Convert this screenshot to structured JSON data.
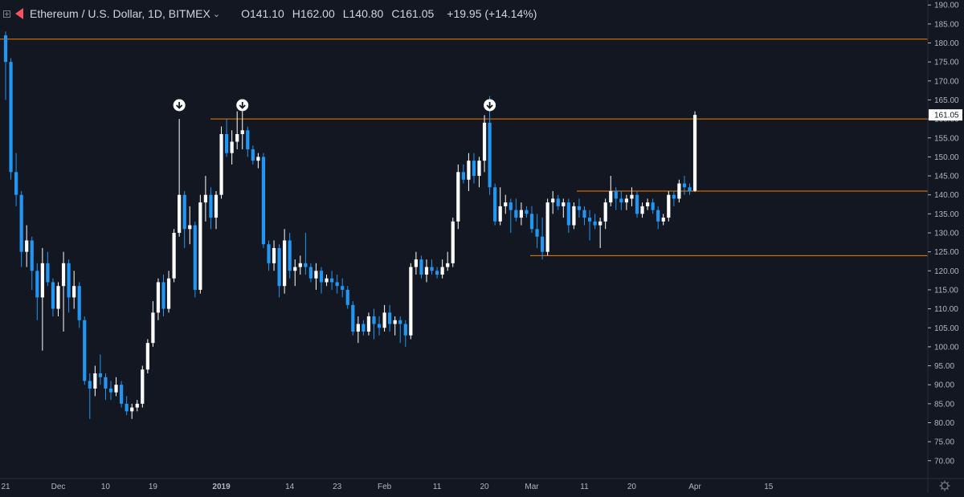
{
  "header": {
    "title": "Ethereum / U.S. Dollar, 1D, BITMEX",
    "ohlc": {
      "open": "O141.10",
      "high": "H162.00",
      "low": "L140.80",
      "close": "C161.05"
    },
    "change": "+19.95 (+14.14%)"
  },
  "colors": {
    "background": "#131722",
    "up_candle": "#ffffff",
    "down_candle": "#2196f3",
    "level_line": "#f57c00",
    "axis_text": "#b2b5be",
    "price_label_bg": "#ffffff"
  },
  "chart_data": {
    "type": "candlestick",
    "symbol": "Ethereum / U.S. Dollar",
    "interval": "1D",
    "exchange": "BITMEX",
    "last_price_label": "161.05",
    "ylim": [
      68,
      192
    ],
    "y_ticks": [
      "70.00",
      "75.00",
      "80.00",
      "85.00",
      "90.00",
      "95.00",
      "100.00",
      "105.00",
      "110.00",
      "115.00",
      "120.00",
      "125.00",
      "130.00",
      "135.00",
      "140.00",
      "145.00",
      "150.00",
      "155.00",
      "160.00",
      "165.00",
      "170.00",
      "175.00",
      "180.00",
      "185.00",
      "190.00"
    ],
    "x_ticks": [
      {
        "label": "21",
        "date": "2018-11-21"
      },
      {
        "label": "Dec",
        "date": "2018-12-01"
      },
      {
        "label": "10",
        "date": "2018-12-10"
      },
      {
        "label": "19",
        "date": "2018-12-19"
      },
      {
        "label": "2019",
        "date": "2019-01-01",
        "bold": true
      },
      {
        "label": "14",
        "date": "2019-01-14"
      },
      {
        "label": "23",
        "date": "2019-01-23"
      },
      {
        "label": "Feb",
        "date": "2019-02-01"
      },
      {
        "label": "11",
        "date": "2019-02-11"
      },
      {
        "label": "20",
        "date": "2019-02-20"
      },
      {
        "label": "Mar",
        "date": "2019-03-01"
      },
      {
        "label": "11",
        "date": "2019-03-11"
      },
      {
        "label": "20",
        "date": "2019-03-20"
      },
      {
        "label": "Apr",
        "date": "2019-04-01"
      },
      {
        "label": "15",
        "date": "2019-04-15"
      }
    ],
    "candles": [
      {
        "d": "2018-11-21",
        "o": 182,
        "h": 183,
        "l": 165,
        "c": 175
      },
      {
        "d": "2018-11-22",
        "o": 175,
        "h": 176,
        "l": 144,
        "c": 146
      },
      {
        "d": "2018-11-23",
        "o": 146,
        "h": 151,
        "l": 137,
        "c": 140
      },
      {
        "d": "2018-11-24",
        "o": 140,
        "h": 141,
        "l": 121,
        "c": 125
      },
      {
        "d": "2018-11-25",
        "o": 125,
        "h": 132,
        "l": 121,
        "c": 128
      },
      {
        "d": "2018-11-26",
        "o": 128,
        "h": 129,
        "l": 115,
        "c": 120
      },
      {
        "d": "2018-11-27",
        "o": 120,
        "h": 122,
        "l": 107,
        "c": 113
      },
      {
        "d": "2018-11-28",
        "o": 113,
        "h": 126,
        "l": 99,
        "c": 122
      },
      {
        "d": "2018-11-29",
        "o": 122,
        "h": 125,
        "l": 116,
        "c": 117
      },
      {
        "d": "2018-11-30",
        "o": 117,
        "h": 118,
        "l": 108,
        "c": 110
      },
      {
        "d": "2018-12-01",
        "o": 110,
        "h": 117,
        "l": 108,
        "c": 116
      },
      {
        "d": "2018-12-02",
        "o": 116,
        "h": 125,
        "l": 104,
        "c": 122
      },
      {
        "d": "2018-12-03",
        "o": 122,
        "h": 123,
        "l": 109,
        "c": 113
      },
      {
        "d": "2018-12-04",
        "o": 113,
        "h": 120,
        "l": 110,
        "c": 116
      },
      {
        "d": "2018-12-05",
        "o": 116,
        "h": 117,
        "l": 105,
        "c": 107
      },
      {
        "d": "2018-12-06",
        "o": 107,
        "h": 108,
        "l": 90,
        "c": 91
      },
      {
        "d": "2018-12-07",
        "o": 91,
        "h": 93,
        "l": 81,
        "c": 89
      },
      {
        "d": "2018-12-08",
        "o": 89,
        "h": 95,
        "l": 87,
        "c": 93
      },
      {
        "d": "2018-12-09",
        "o": 93,
        "h": 98,
        "l": 90,
        "c": 92
      },
      {
        "d": "2018-12-10",
        "o": 92,
        "h": 93,
        "l": 86,
        "c": 89
      },
      {
        "d": "2018-12-11",
        "o": 89,
        "h": 91,
        "l": 86,
        "c": 88
      },
      {
        "d": "2018-12-12",
        "o": 88,
        "h": 92,
        "l": 87,
        "c": 90
      },
      {
        "d": "2018-12-13",
        "o": 90,
        "h": 91,
        "l": 84,
        "c": 85
      },
      {
        "d": "2018-12-14",
        "o": 85,
        "h": 87,
        "l": 82,
        "c": 83
      },
      {
        "d": "2018-12-15",
        "o": 83,
        "h": 85,
        "l": 81,
        "c": 84
      },
      {
        "d": "2018-12-16",
        "o": 84,
        "h": 86,
        "l": 83,
        "c": 85
      },
      {
        "d": "2018-12-17",
        "o": 85,
        "h": 95,
        "l": 84,
        "c": 94
      },
      {
        "d": "2018-12-18",
        "o": 94,
        "h": 102,
        "l": 93,
        "c": 101
      },
      {
        "d": "2018-12-19",
        "o": 101,
        "h": 112,
        "l": 100,
        "c": 109
      },
      {
        "d": "2018-12-20",
        "o": 109,
        "h": 118,
        "l": 107,
        "c": 117
      },
      {
        "d": "2018-12-21",
        "o": 117,
        "h": 119,
        "l": 108,
        "c": 110
      },
      {
        "d": "2018-12-22",
        "o": 110,
        "h": 120,
        "l": 109,
        "c": 118
      },
      {
        "d": "2018-12-23",
        "o": 118,
        "h": 131,
        "l": 117,
        "c": 130
      },
      {
        "d": "2018-12-24",
        "o": 130,
        "h": 160,
        "l": 129,
        "c": 140
      },
      {
        "d": "2018-12-25",
        "o": 140,
        "h": 141,
        "l": 126,
        "c": 131
      },
      {
        "d": "2018-12-26",
        "o": 131,
        "h": 137,
        "l": 127,
        "c": 132
      },
      {
        "d": "2018-12-27",
        "o": 132,
        "h": 133,
        "l": 113,
        "c": 115
      },
      {
        "d": "2018-12-28",
        "o": 115,
        "h": 140,
        "l": 114,
        "c": 138
      },
      {
        "d": "2018-12-29",
        "o": 138,
        "h": 145,
        "l": 133,
        "c": 140
      },
      {
        "d": "2018-12-30",
        "o": 140,
        "h": 142,
        "l": 131,
        "c": 134
      },
      {
        "d": "2018-12-31",
        "o": 134,
        "h": 141,
        "l": 131,
        "c": 140
      },
      {
        "d": "2019-01-01",
        "o": 140,
        "h": 158,
        "l": 139,
        "c": 156
      },
      {
        "d": "2019-01-02",
        "o": 156,
        "h": 160,
        "l": 150,
        "c": 151
      },
      {
        "d": "2019-01-03",
        "o": 151,
        "h": 157,
        "l": 148,
        "c": 154
      },
      {
        "d": "2019-01-04",
        "o": 154,
        "h": 162,
        "l": 152,
        "c": 156
      },
      {
        "d": "2019-01-05",
        "o": 156,
        "h": 162,
        "l": 152,
        "c": 157
      },
      {
        "d": "2019-01-06",
        "o": 157,
        "h": 158,
        "l": 150,
        "c": 152
      },
      {
        "d": "2019-01-07",
        "o": 152,
        "h": 153,
        "l": 148,
        "c": 149
      },
      {
        "d": "2019-01-08",
        "o": 149,
        "h": 151,
        "l": 147,
        "c": 150
      },
      {
        "d": "2019-01-09",
        "o": 150,
        "h": 151,
        "l": 126,
        "c": 127
      },
      {
        "d": "2019-01-10",
        "o": 127,
        "h": 128,
        "l": 120,
        "c": 122
      },
      {
        "d": "2019-01-11",
        "o": 122,
        "h": 128,
        "l": 120,
        "c": 126
      },
      {
        "d": "2019-01-12",
        "o": 126,
        "h": 127,
        "l": 113,
        "c": 116
      },
      {
        "d": "2019-01-13",
        "o": 116,
        "h": 131,
        "l": 114,
        "c": 128
      },
      {
        "d": "2019-01-14",
        "o": 128,
        "h": 130,
        "l": 118,
        "c": 120
      },
      {
        "d": "2019-01-15",
        "o": 120,
        "h": 123,
        "l": 116,
        "c": 121
      },
      {
        "d": "2019-01-16",
        "o": 121,
        "h": 124,
        "l": 119,
        "c": 122
      },
      {
        "d": "2019-01-17",
        "o": 122,
        "h": 130,
        "l": 119,
        "c": 121
      },
      {
        "d": "2019-01-18",
        "o": 121,
        "h": 122,
        "l": 117,
        "c": 118
      },
      {
        "d": "2019-01-19",
        "o": 118,
        "h": 122,
        "l": 115,
        "c": 120
      },
      {
        "d": "2019-01-20",
        "o": 120,
        "h": 121,
        "l": 114,
        "c": 117
      },
      {
        "d": "2019-01-21",
        "o": 117,
        "h": 119,
        "l": 116,
        "c": 118
      },
      {
        "d": "2019-01-22",
        "o": 118,
        "h": 120,
        "l": 115,
        "c": 117
      },
      {
        "d": "2019-01-23",
        "o": 117,
        "h": 119,
        "l": 114,
        "c": 116
      },
      {
        "d": "2019-01-24",
        "o": 116,
        "h": 118,
        "l": 113,
        "c": 115
      },
      {
        "d": "2019-01-25",
        "o": 115,
        "h": 116,
        "l": 110,
        "c": 111
      },
      {
        "d": "2019-01-26",
        "o": 111,
        "h": 112,
        "l": 103,
        "c": 104
      },
      {
        "d": "2019-01-27",
        "o": 104,
        "h": 108,
        "l": 101,
        "c": 106
      },
      {
        "d": "2019-01-28",
        "o": 106,
        "h": 107,
        "l": 103,
        "c": 104
      },
      {
        "d": "2019-01-29",
        "o": 104,
        "h": 109,
        "l": 103,
        "c": 108
      },
      {
        "d": "2019-01-30",
        "o": 108,
        "h": 110,
        "l": 102,
        "c": 106
      },
      {
        "d": "2019-01-31",
        "o": 106,
        "h": 108,
        "l": 103,
        "c": 105
      },
      {
        "d": "2019-02-01",
        "o": 105,
        "h": 111,
        "l": 104,
        "c": 109
      },
      {
        "d": "2019-02-02",
        "o": 109,
        "h": 111,
        "l": 104,
        "c": 106
      },
      {
        "d": "2019-02-03",
        "o": 106,
        "h": 108,
        "l": 103,
        "c": 107
      },
      {
        "d": "2019-02-04",
        "o": 107,
        "h": 108,
        "l": 101,
        "c": 106
      },
      {
        "d": "2019-02-05",
        "o": 106,
        "h": 107,
        "l": 100,
        "c": 103
      },
      {
        "d": "2019-02-06",
        "o": 103,
        "h": 122,
        "l": 102,
        "c": 121
      },
      {
        "d": "2019-02-07",
        "o": 121,
        "h": 125,
        "l": 119,
        "c": 123
      },
      {
        "d": "2019-02-08",
        "o": 123,
        "h": 124,
        "l": 118,
        "c": 119
      },
      {
        "d": "2019-02-09",
        "o": 119,
        "h": 123,
        "l": 117,
        "c": 121
      },
      {
        "d": "2019-02-10",
        "o": 121,
        "h": 123,
        "l": 119,
        "c": 120
      },
      {
        "d": "2019-02-11",
        "o": 120,
        "h": 121,
        "l": 118,
        "c": 119
      },
      {
        "d": "2019-02-12",
        "o": 119,
        "h": 123,
        "l": 118,
        "c": 121
      },
      {
        "d": "2019-02-13",
        "o": 121,
        "h": 125,
        "l": 120,
        "c": 122
      },
      {
        "d": "2019-02-14",
        "o": 122,
        "h": 134,
        "l": 121,
        "c": 133
      },
      {
        "d": "2019-02-15",
        "o": 133,
        "h": 148,
        "l": 131,
        "c": 146
      },
      {
        "d": "2019-02-16",
        "o": 146,
        "h": 148,
        "l": 143,
        "c": 144
      },
      {
        "d": "2019-02-17",
        "o": 144,
        "h": 151,
        "l": 141,
        "c": 149
      },
      {
        "d": "2019-02-18",
        "o": 149,
        "h": 151,
        "l": 143,
        "c": 145
      },
      {
        "d": "2019-02-19",
        "o": 145,
        "h": 150,
        "l": 142,
        "c": 149
      },
      {
        "d": "2019-02-20",
        "o": 149,
        "h": 161,
        "l": 146,
        "c": 159
      },
      {
        "d": "2019-02-21",
        "o": 159,
        "h": 166,
        "l": 140,
        "c": 142
      },
      {
        "d": "2019-02-22",
        "o": 142,
        "h": 143,
        "l": 132,
        "c": 133
      },
      {
        "d": "2019-02-23",
        "o": 133,
        "h": 142,
        "l": 132,
        "c": 137
      },
      {
        "d": "2019-02-24",
        "o": 137,
        "h": 140,
        "l": 135,
        "c": 138
      },
      {
        "d": "2019-02-25",
        "o": 138,
        "h": 139,
        "l": 130,
        "c": 136
      },
      {
        "d": "2019-02-26",
        "o": 136,
        "h": 139,
        "l": 133,
        "c": 134
      },
      {
        "d": "2019-02-27",
        "o": 134,
        "h": 138,
        "l": 132,
        "c": 136
      },
      {
        "d": "2019-02-28",
        "o": 136,
        "h": 137,
        "l": 134,
        "c": 135
      },
      {
        "d": "2019-03-01",
        "o": 135,
        "h": 137,
        "l": 130,
        "c": 131
      },
      {
        "d": "2019-03-02",
        "o": 131,
        "h": 135,
        "l": 126,
        "c": 129
      },
      {
        "d": "2019-03-03",
        "o": 129,
        "h": 134,
        "l": 123,
        "c": 125
      },
      {
        "d": "2019-03-04",
        "o": 125,
        "h": 139,
        "l": 124,
        "c": 138
      },
      {
        "d": "2019-03-05",
        "o": 138,
        "h": 141,
        "l": 135,
        "c": 139
      },
      {
        "d": "2019-03-06",
        "o": 139,
        "h": 140,
        "l": 136,
        "c": 137
      },
      {
        "d": "2019-03-07",
        "o": 137,
        "h": 139,
        "l": 134,
        "c": 138
      },
      {
        "d": "2019-03-08",
        "o": 138,
        "h": 139,
        "l": 130,
        "c": 132
      },
      {
        "d": "2019-03-09",
        "o": 132,
        "h": 138,
        "l": 131,
        "c": 137
      },
      {
        "d": "2019-03-10",
        "o": 137,
        "h": 139,
        "l": 134,
        "c": 136
      },
      {
        "d": "2019-03-11",
        "o": 136,
        "h": 137,
        "l": 132,
        "c": 134
      },
      {
        "d": "2019-03-12",
        "o": 134,
        "h": 136,
        "l": 128,
        "c": 133
      },
      {
        "d": "2019-03-13",
        "o": 133,
        "h": 135,
        "l": 131,
        "c": 132
      },
      {
        "d": "2019-03-14",
        "o": 132,
        "h": 134,
        "l": 126,
        "c": 133
      },
      {
        "d": "2019-03-15",
        "o": 133,
        "h": 139,
        "l": 131,
        "c": 138
      },
      {
        "d": "2019-03-16",
        "o": 138,
        "h": 145,
        "l": 137,
        "c": 141
      },
      {
        "d": "2019-03-17",
        "o": 141,
        "h": 142,
        "l": 136,
        "c": 139
      },
      {
        "d": "2019-03-18",
        "o": 139,
        "h": 141,
        "l": 136,
        "c": 138
      },
      {
        "d": "2019-03-19",
        "o": 138,
        "h": 140,
        "l": 136,
        "c": 139
      },
      {
        "d": "2019-03-20",
        "o": 139,
        "h": 142,
        "l": 137,
        "c": 140
      },
      {
        "d": "2019-03-21",
        "o": 140,
        "h": 141,
        "l": 134,
        "c": 135
      },
      {
        "d": "2019-03-22",
        "o": 135,
        "h": 138,
        "l": 134,
        "c": 137
      },
      {
        "d": "2019-03-23",
        "o": 137,
        "h": 139,
        "l": 136,
        "c": 138
      },
      {
        "d": "2019-03-24",
        "o": 138,
        "h": 139,
        "l": 135,
        "c": 136
      },
      {
        "d": "2019-03-25",
        "o": 136,
        "h": 137,
        "l": 131,
        "c": 133
      },
      {
        "d": "2019-03-26",
        "o": 133,
        "h": 135,
        "l": 132,
        "c": 134
      },
      {
        "d": "2019-03-27",
        "o": 134,
        "h": 141,
        "l": 133,
        "c": 140
      },
      {
        "d": "2019-03-28",
        "o": 140,
        "h": 141,
        "l": 137,
        "c": 139
      },
      {
        "d": "2019-03-29",
        "o": 139,
        "h": 144,
        "l": 138,
        "c": 143
      },
      {
        "d": "2019-03-30",
        "o": 143,
        "h": 145,
        "l": 140,
        "c": 142
      },
      {
        "d": "2019-03-31",
        "o": 142,
        "h": 143,
        "l": 140,
        "c": 141
      },
      {
        "d": "2019-04-01",
        "o": 141.1,
        "h": 162,
        "l": 140.8,
        "c": 161.05
      }
    ],
    "horizontal_levels": [
      181,
      160,
      141,
      124
    ],
    "down_arrow_markers": [
      "2018-12-24",
      "2019-01-05",
      "2019-02-21"
    ]
  }
}
